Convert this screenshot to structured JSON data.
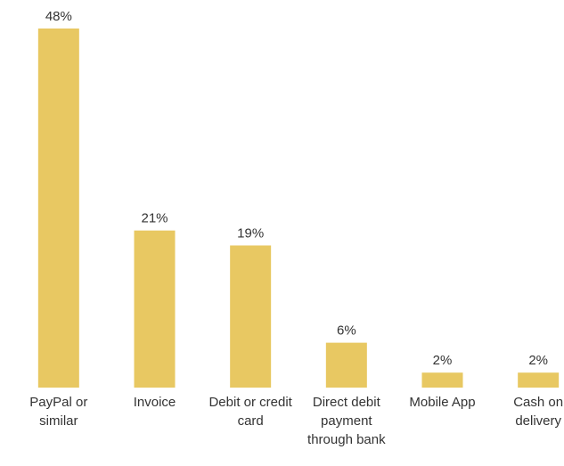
{
  "chart_data": {
    "type": "bar",
    "categories": [
      "PayPal or similar",
      "Invoice",
      "Debit or credit card",
      "Direct debit payment through bank",
      "Mobile App",
      "Cash on delivery"
    ],
    "values": [
      48,
      21,
      19,
      6,
      2,
      2
    ],
    "value_labels": [
      "48%",
      "21%",
      "19%",
      "6%",
      "2%",
      "2%"
    ],
    "color": "#e8c862"
  }
}
